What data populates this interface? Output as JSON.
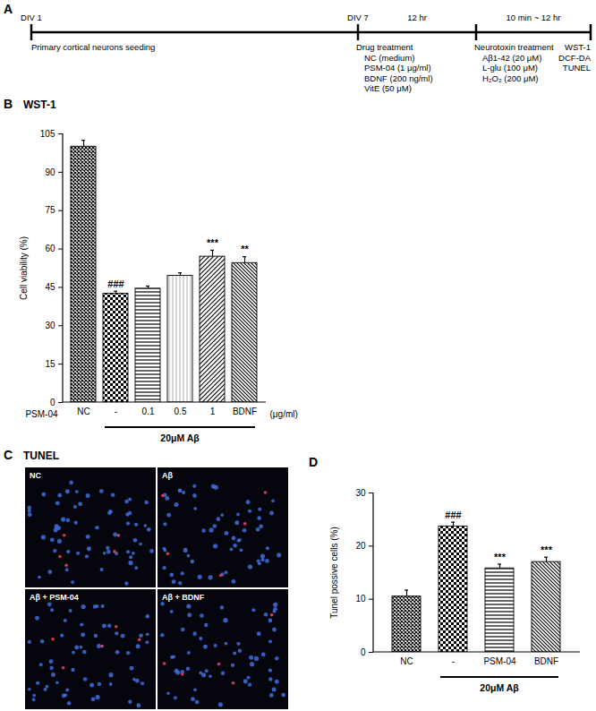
{
  "timeline": {
    "panel": "A",
    "points": [
      {
        "above": "DIV 1",
        "below": [
          "Primary cortical neurons seeding"
        ]
      },
      {
        "above": "DIV 7",
        "below": [
          "Drug treatment",
          "NC (medium)",
          "PSM-04 (1 μg/ml)",
          "BDNF (200 ng/ml)",
          "VitE (50 μM)"
        ]
      },
      {
        "below": [
          "Neurotoxin treatment",
          "Aβ1-42 (20 μM)",
          "L-glu (100 μM)",
          "H₂O₂ (200 μM)"
        ]
      },
      {
        "below": [
          "WST-1",
          "DCF-DA",
          "TUNEL"
        ]
      }
    ],
    "intervals": [
      "12 hr",
      "10 min ~ 12 hr"
    ]
  },
  "chart_data": [
    {
      "panel": "B",
      "type": "bar",
      "title": "WST-1",
      "categories": [
        "NC",
        "-",
        "0.1",
        "0.5",
        "1",
        "BDNF"
      ],
      "values": [
        100,
        42.5,
        44.5,
        49.5,
        57,
        54.5
      ],
      "errors": [
        2.5,
        1,
        1,
        1.2,
        2.5,
        2.5
      ],
      "significance": [
        null,
        "###",
        null,
        null,
        "***",
        "**"
      ],
      "x_label": "PSM-04",
      "x_unit": "(μg/ml)",
      "bracket": {
        "label": "20μM Aβ",
        "from": "-",
        "to": "BDNF"
      },
      "y_label": "Cell viability (%)",
      "ylim": [
        0,
        105
      ],
      "yticks": [
        0,
        15,
        30,
        45,
        60,
        75,
        90,
        105
      ],
      "grid": false
    },
    {
      "panel": "D",
      "type": "bar",
      "categories": [
        "NC",
        "-",
        "PSM-04",
        "BDNF"
      ],
      "values": [
        10.5,
        23.7,
        15.8,
        17
      ],
      "errors": [
        1.2,
        0.8,
        0.8,
        0.9
      ],
      "significance": [
        null,
        "###",
        "***",
        "***"
      ],
      "bracket": {
        "label": "20μM Aβ",
        "from": "-",
        "to": "BDNF"
      },
      "y_label": "Tunel possive cells (%)",
      "ylim": [
        0,
        30
      ],
      "yticks": [
        0,
        10,
        20,
        30
      ],
      "grid": false
    }
  ],
  "micrographs": {
    "panel": "C",
    "title": "TUNEL",
    "images": [
      "NC",
      "Aβ",
      "Aβ + PSM-04",
      "Aβ + BDNF"
    ]
  }
}
